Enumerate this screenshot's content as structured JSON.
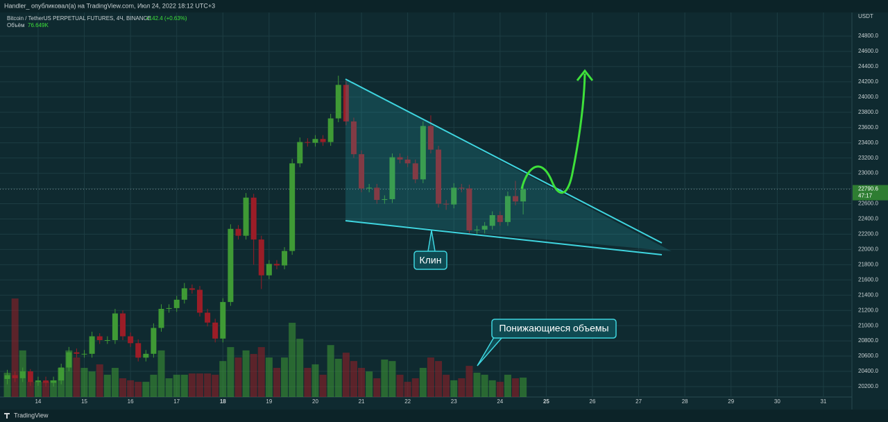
{
  "header": {
    "author_line": "Handler_ опубликовал(а) на TradingView.com, Июл 24, 2022 18:12 UTC+3",
    "footer_brand": "TradingView"
  },
  "chart_data": {
    "type": "candlestick",
    "symbol": "Bitcoin / TetherUS PERPETUAL FUTURES, 4Ч, BINANCE",
    "change": "+142.4 (+0.63%)",
    "volume_label": "Объём",
    "volume_value": "76.649K",
    "currency": "USDT",
    "last_price": 22790.6,
    "countdown": "47:17",
    "annotations": [
      "Клин",
      "Понижающиеся объемы"
    ],
    "up_color": "#3f9a35",
    "down_color": "#9b1d27",
    "xlim": [
      -0.95,
      109.7
    ],
    "xticks": [
      {
        "value": 4,
        "label": "14"
      },
      {
        "value": 10,
        "label": "15"
      },
      {
        "value": 16,
        "label": "16"
      },
      {
        "value": 22,
        "label": "17"
      },
      {
        "value": 28,
        "label": "18"
      },
      {
        "value": 34,
        "label": "19"
      },
      {
        "value": 40,
        "label": "20"
      },
      {
        "value": 46,
        "label": "21"
      },
      {
        "value": 52,
        "label": "22"
      },
      {
        "value": 58,
        "label": "23"
      },
      {
        "value": 64,
        "label": "24"
      },
      {
        "value": 70,
        "label": "25"
      },
      {
        "value": 76,
        "label": "26"
      },
      {
        "value": 82,
        "label": "27"
      },
      {
        "value": 88,
        "label": "28"
      },
      {
        "value": 94,
        "label": "29"
      },
      {
        "value": 100,
        "label": "30"
      },
      {
        "value": 106,
        "label": "31"
      }
    ],
    "ylim": [
      20063,
      25110
    ],
    "yticks": [
      {
        "value": 20200,
        "label": "20200.0"
      },
      {
        "value": 20400,
        "label": "20400.0"
      },
      {
        "value": 20600,
        "label": "20600.0"
      },
      {
        "value": 20800,
        "label": "20800.0"
      },
      {
        "value": 21000,
        "label": "21000.0"
      },
      {
        "value": 21200,
        "label": "21200.0"
      },
      {
        "value": 21400,
        "label": "21400.0"
      },
      {
        "value": 21600,
        "label": "21600.0"
      },
      {
        "value": 21800,
        "label": "21800.0"
      },
      {
        "value": 22000,
        "label": "22000.0"
      },
      {
        "value": 22200,
        "label": "22200.0"
      },
      {
        "value": 22400,
        "label": "22400.0"
      },
      {
        "value": 22600,
        "label": "22600.0"
      },
      {
        "value": 22800,
        "label": "22800.0"
      },
      {
        "value": 23000,
        "label": "23000.0"
      },
      {
        "value": 23200,
        "label": "23200.0"
      },
      {
        "value": 23400,
        "label": "23400.0"
      },
      {
        "value": 23600,
        "label": "23600.0"
      },
      {
        "value": 23800,
        "label": "23800.0"
      },
      {
        "value": 24000,
        "label": "24000.0"
      },
      {
        "value": 24200,
        "label": "24200.0"
      },
      {
        "value": 24400,
        "label": "24400.0"
      },
      {
        "value": 24600,
        "label": "24600.0"
      },
      {
        "value": 24800,
        "label": "24800.0"
      }
    ],
    "open": [
      20300,
      20350,
      20310,
      20400,
      20260,
      20280,
      20250,
      20280,
      20450,
      20650,
      20630,
      20630,
      20860,
      20810,
      20810,
      21160,
      20860,
      20770,
      20580,
      20630,
      20970,
      21220,
      21230,
      21340,
      21490,
      21470,
      21170,
      21040,
      20830,
      21310,
      22270,
      22180,
      22680,
      22130,
      21660,
      21810,
      21790,
      21980,
      23130,
      23410,
      23400,
      23450,
      23410,
      23720,
      24160,
      23680,
      23250,
      22800,
      22810,
      22650,
      22660,
      23210,
      23180,
      23130,
      22920,
      23620,
      23310,
      22600,
      22590,
      22810,
      22800,
      22250,
      22260,
      22310,
      22450,
      22360,
      22700,
      22630
    ],
    "high": [
      20420,
      20400,
      20450,
      20430,
      20330,
      20330,
      20330,
      20500,
      20720,
      20700,
      20680,
      20920,
      20900,
      20860,
      21220,
      21200,
      20910,
      20820,
      20680,
      21030,
      21280,
      21280,
      21390,
      21560,
      21540,
      21520,
      21220,
      21090,
      21360,
      22330,
      22320,
      22740,
      22730,
      22180,
      21860,
      21860,
      22030,
      23190,
      23470,
      23460,
      23500,
      23500,
      23780,
      24280,
      24210,
      23730,
      23300,
      22860,
      22860,
      22710,
      23260,
      23260,
      23230,
      23180,
      23680,
      23760,
      23360,
      22650,
      22870,
      22860,
      22850,
      22310,
      22360,
      22500,
      22500,
      22760,
      22900,
      22900
    ],
    "low": [
      20230,
      20260,
      20260,
      20210,
      20210,
      20200,
      20200,
      20230,
      20400,
      20580,
      20580,
      20580,
      20760,
      20760,
      20760,
      20810,
      20720,
      20530,
      20530,
      20580,
      20920,
      21170,
      21180,
      21290,
      21420,
      21120,
      20990,
      20780,
      20780,
      21260,
      22130,
      22130,
      21800,
      21480,
      21610,
      21740,
      21740,
      21930,
      23080,
      23350,
      23350,
      23360,
      23360,
      23670,
      23630,
      23200,
      22750,
      22750,
      22600,
      22600,
      22610,
      23130,
      23080,
      22870,
      22870,
      23260,
      22550,
      22520,
      22540,
      22750,
      22200,
      22200,
      22210,
      22260,
      22310,
      22310,
      22580,
      22460
    ],
    "close": [
      20350,
      20310,
      20400,
      20260,
      20280,
      20250,
      20280,
      20450,
      20650,
      20630,
      20630,
      20860,
      20810,
      20810,
      21160,
      20860,
      20770,
      20580,
      20630,
      20970,
      21220,
      21230,
      21340,
      21490,
      21470,
      21170,
      21040,
      20830,
      21310,
      22270,
      22180,
      22680,
      22130,
      21660,
      21810,
      21790,
      21980,
      23130,
      23410,
      23400,
      23450,
      23410,
      23720,
      24160,
      23680,
      23250,
      22800,
      22810,
      22650,
      22660,
      23210,
      23180,
      23130,
      22920,
      23620,
      23310,
      22600,
      22590,
      22810,
      22800,
      22250,
      22260,
      22310,
      22450,
      22360,
      22700,
      22630,
      22790.6
    ],
    "volume": [
      96,
      389,
      184,
      60,
      60,
      60,
      66,
      115,
      184,
      156,
      115,
      101,
      129,
      88,
      115,
      74,
      66,
      60,
      60,
      88,
      184,
      74,
      88,
      88,
      93,
      93,
      93,
      88,
      142,
      197,
      156,
      184,
      170,
      197,
      156,
      115,
      156,
      293,
      230,
      115,
      129,
      88,
      205,
      151,
      175,
      142,
      115,
      101,
      74,
      148,
      142,
      88,
      60,
      74,
      115,
      156,
      142,
      88,
      66,
      74,
      123,
      96,
      88,
      66,
      60,
      88,
      74,
      76.649
    ]
  }
}
